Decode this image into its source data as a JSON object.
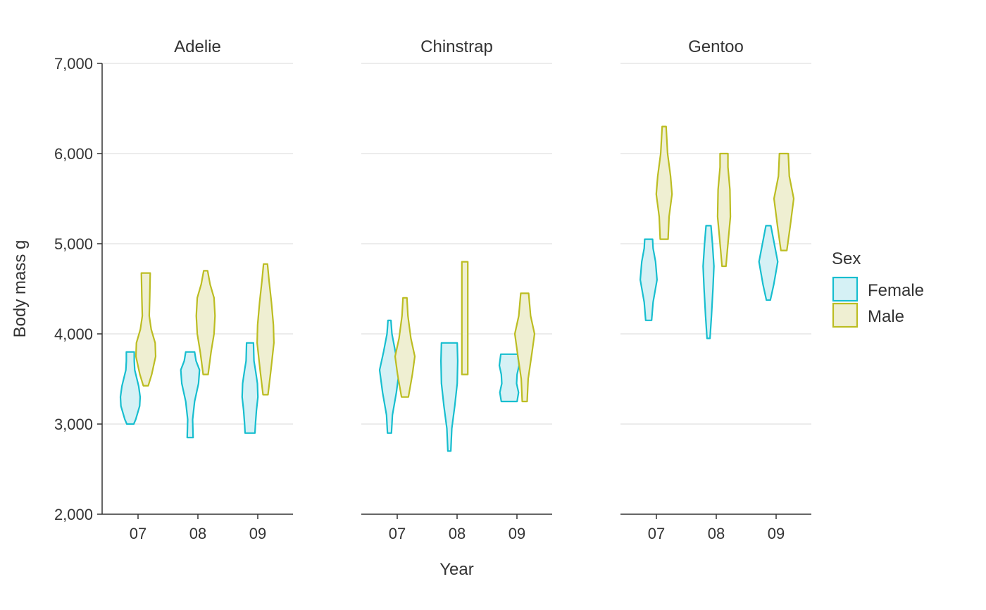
{
  "chart_data": {
    "type": "violin",
    "xlabel": "Year",
    "ylabel": "Body mass g",
    "ylim": [
      2000,
      7000
    ],
    "yticks": [
      2000,
      3000,
      4000,
      5000,
      6000,
      7000
    ],
    "ytick_labels": [
      "2,000",
      "3,000",
      "4,000",
      "5,000",
      "6,000",
      "7,000"
    ],
    "categories": [
      "07",
      "08",
      "09"
    ],
    "grid": "horizontal",
    "legend": {
      "title": "Sex",
      "placement": "right",
      "entries": [
        {
          "name": "Female",
          "color": "#17becf",
          "fill": "#d5f1f5"
        },
        {
          "name": "Male",
          "color": "#bcbd22",
          "fill": "#efefd2"
        }
      ]
    },
    "facets": [
      {
        "title": "Adelie",
        "violins": [
          {
            "year": "07",
            "sex": "Female",
            "min": 3000,
            "max": 3800,
            "profile": [
              [
                3000,
                0.35
              ],
              [
                3050,
                0.55
              ],
              [
                3200,
                0.95
              ],
              [
                3300,
                1.0
              ],
              [
                3420,
                0.85
              ],
              [
                3600,
                0.45
              ],
              [
                3700,
                0.4
              ],
              [
                3800,
                0.4
              ]
            ]
          },
          {
            "year": "07",
            "sex": "Male",
            "min": 3425,
            "max": 4675,
            "profile": [
              [
                3425,
                0.25
              ],
              [
                3550,
                0.6
              ],
              [
                3750,
                1.0
              ],
              [
                3900,
                0.95
              ],
              [
                4050,
                0.55
              ],
              [
                4200,
                0.35
              ],
              [
                4400,
                0.4
              ],
              [
                4675,
                0.45
              ]
            ]
          },
          {
            "year": "08",
            "sex": "Female",
            "min": 2850,
            "max": 3800,
            "profile": [
              [
                2850,
                0.3
              ],
              [
                3050,
                0.25
              ],
              [
                3250,
                0.45
              ],
              [
                3450,
                0.85
              ],
              [
                3600,
                0.95
              ],
              [
                3700,
                0.6
              ],
              [
                3800,
                0.45
              ]
            ]
          },
          {
            "year": "08",
            "sex": "Male",
            "min": 3550,
            "max": 4700,
            "profile": [
              [
                3550,
                0.25
              ],
              [
                3800,
                0.55
              ],
              [
                4000,
                0.85
              ],
              [
                4200,
                0.95
              ],
              [
                4400,
                0.85
              ],
              [
                4550,
                0.45
              ],
              [
                4700,
                0.2
              ]
            ]
          },
          {
            "year": "09",
            "sex": "Female",
            "min": 2900,
            "max": 3900,
            "profile": [
              [
                2900,
                0.5
              ],
              [
                3000,
                0.55
              ],
              [
                3150,
                0.65
              ],
              [
                3300,
                0.8
              ],
              [
                3450,
                0.75
              ],
              [
                3600,
                0.55
              ],
              [
                3700,
                0.4
              ],
              [
                3900,
                0.35
              ]
            ]
          },
          {
            "year": "09",
            "sex": "Male",
            "min": 3325,
            "max": 4775,
            "profile": [
              [
                3325,
                0.25
              ],
              [
                3600,
                0.55
              ],
              [
                3900,
                0.85
              ],
              [
                4100,
                0.8
              ],
              [
                4350,
                0.6
              ],
              [
                4600,
                0.35
              ],
              [
                4775,
                0.2
              ]
            ]
          }
        ]
      },
      {
        "title": "Chinstrap",
        "violins": [
          {
            "year": "07",
            "sex": "Female",
            "min": 2900,
            "max": 4150,
            "profile": [
              [
                2900,
                0.2
              ],
              [
                3100,
                0.3
              ],
              [
                3350,
                0.7
              ],
              [
                3600,
                1.0
              ],
              [
                3800,
                0.6
              ],
              [
                4000,
                0.25
              ],
              [
                4150,
                0.15
              ]
            ]
          },
          {
            "year": "07",
            "sex": "Male",
            "min": 3300,
            "max": 4400,
            "profile": [
              [
                3300,
                0.35
              ],
              [
                3550,
                0.75
              ],
              [
                3750,
                1.0
              ],
              [
                3950,
                0.6
              ],
              [
                4200,
                0.3
              ],
              [
                4400,
                0.2
              ]
            ]
          },
          {
            "year": "08",
            "sex": "Female",
            "min": 2700,
            "max": 3900,
            "profile": [
              [
                2700,
                0.15
              ],
              [
                2950,
                0.25
              ],
              [
                3200,
                0.55
              ],
              [
                3450,
                0.8
              ],
              [
                3700,
                0.85
              ],
              [
                3900,
                0.8
              ]
            ]
          },
          {
            "year": "08",
            "sex": "Male",
            "min": 3550,
            "max": 4800,
            "profile": [
              [
                3550,
                0.3
              ],
              [
                3800,
                0.3
              ],
              [
                4100,
                0.3
              ],
              [
                4400,
                0.3
              ],
              [
                4800,
                0.3
              ]
            ]
          },
          {
            "year": "09",
            "sex": "Female",
            "min": 3250,
            "max": 3775,
            "profile": [
              [
                3250,
                0.8
              ],
              [
                3350,
                0.95
              ],
              [
                3450,
                0.75
              ],
              [
                3550,
                0.8
              ],
              [
                3650,
                1.0
              ],
              [
                3775,
                0.85
              ]
            ]
          },
          {
            "year": "09",
            "sex": "Male",
            "min": 3250,
            "max": 4450,
            "profile": [
              [
                3250,
                0.25
              ],
              [
                3500,
                0.35
              ],
              [
                3800,
                0.75
              ],
              [
                4000,
                1.0
              ],
              [
                4200,
                0.6
              ],
              [
                4450,
                0.4
              ]
            ]
          }
        ]
      },
      {
        "title": "Gentoo",
        "violins": [
          {
            "year": "07",
            "sex": "Female",
            "min": 4150,
            "max": 5050,
            "profile": [
              [
                4150,
                0.3
              ],
              [
                4350,
                0.45
              ],
              [
                4600,
                0.85
              ],
              [
                4800,
                0.7
              ],
              [
                4950,
                0.45
              ],
              [
                5050,
                0.4
              ]
            ]
          },
          {
            "year": "07",
            "sex": "Male",
            "min": 5050,
            "max": 6300,
            "profile": [
              [
                5050,
                0.4
              ],
              [
                5300,
                0.5
              ],
              [
                5550,
                0.8
              ],
              [
                5750,
                0.65
              ],
              [
                6000,
                0.35
              ],
              [
                6300,
                0.2
              ]
            ]
          },
          {
            "year": "08",
            "sex": "Female",
            "min": 3950,
            "max": 5200,
            "profile": [
              [
                3950,
                0.15
              ],
              [
                4200,
                0.3
              ],
              [
                4500,
                0.45
              ],
              [
                4750,
                0.55
              ],
              [
                5000,
                0.4
              ],
              [
                5200,
                0.25
              ]
            ]
          },
          {
            "year": "08",
            "sex": "Male",
            "min": 4750,
            "max": 6000,
            "profile": [
              [
                4750,
                0.2
              ],
              [
                5000,
                0.4
              ],
              [
                5300,
                0.65
              ],
              [
                5600,
                0.6
              ],
              [
                5850,
                0.4
              ],
              [
                6000,
                0.4
              ]
            ]
          },
          {
            "year": "09",
            "sex": "Female",
            "min": 4375,
            "max": 5200,
            "profile": [
              [
                4375,
                0.2
              ],
              [
                4550,
                0.55
              ],
              [
                4800,
                0.95
              ],
              [
                5000,
                0.6
              ],
              [
                5200,
                0.25
              ]
            ]
          },
          {
            "year": "09",
            "sex": "Male",
            "min": 4925,
            "max": 6000,
            "profile": [
              [
                4925,
                0.3
              ],
              [
                5200,
                0.65
              ],
              [
                5500,
                1.0
              ],
              [
                5750,
                0.55
              ],
              [
                6000,
                0.45
              ]
            ]
          }
        ]
      }
    ]
  }
}
